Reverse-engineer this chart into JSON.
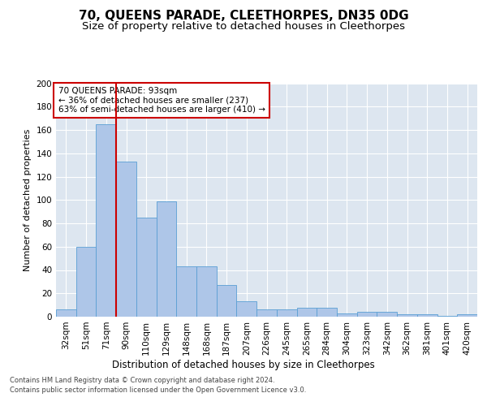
{
  "title": "70, QUEENS PARADE, CLEETHORPES, DN35 0DG",
  "subtitle": "Size of property relative to detached houses in Cleethorpes",
  "xlabel": "Distribution of detached houses by size in Cleethorpes",
  "ylabel": "Number of detached properties",
  "categories": [
    "32sqm",
    "51sqm",
    "71sqm",
    "90sqm",
    "110sqm",
    "129sqm",
    "148sqm",
    "168sqm",
    "187sqm",
    "207sqm",
    "226sqm",
    "245sqm",
    "265sqm",
    "284sqm",
    "304sqm",
    "323sqm",
    "342sqm",
    "362sqm",
    "381sqm",
    "401sqm",
    "420sqm"
  ],
  "values": [
    6,
    60,
    165,
    133,
    85,
    99,
    43,
    43,
    27,
    13,
    6,
    6,
    8,
    8,
    3,
    4,
    4,
    2,
    2,
    1,
    2
  ],
  "bar_color": "#aec6e8",
  "bar_edge_color": "#5a9fd4",
  "vline_x": 2.5,
  "vline_color": "#cc0000",
  "annotation_text": "70 QUEENS PARADE: 93sqm\n← 36% of detached houses are smaller (237)\n63% of semi-detached houses are larger (410) →",
  "annotation_box_color": "#ffffff",
  "annotation_box_edge": "#cc0000",
  "ylim": [
    0,
    200
  ],
  "yticks": [
    0,
    20,
    40,
    60,
    80,
    100,
    120,
    140,
    160,
    180,
    200
  ],
  "bg_color": "#dde6f0",
  "footer_line1": "Contains HM Land Registry data © Crown copyright and database right 2024.",
  "footer_line2": "Contains public sector information licensed under the Open Government Licence v3.0.",
  "title_fontsize": 11,
  "subtitle_fontsize": 9.5,
  "xlabel_fontsize": 8.5,
  "ylabel_fontsize": 8,
  "tick_fontsize": 7.5,
  "annotation_fontsize": 7.5
}
